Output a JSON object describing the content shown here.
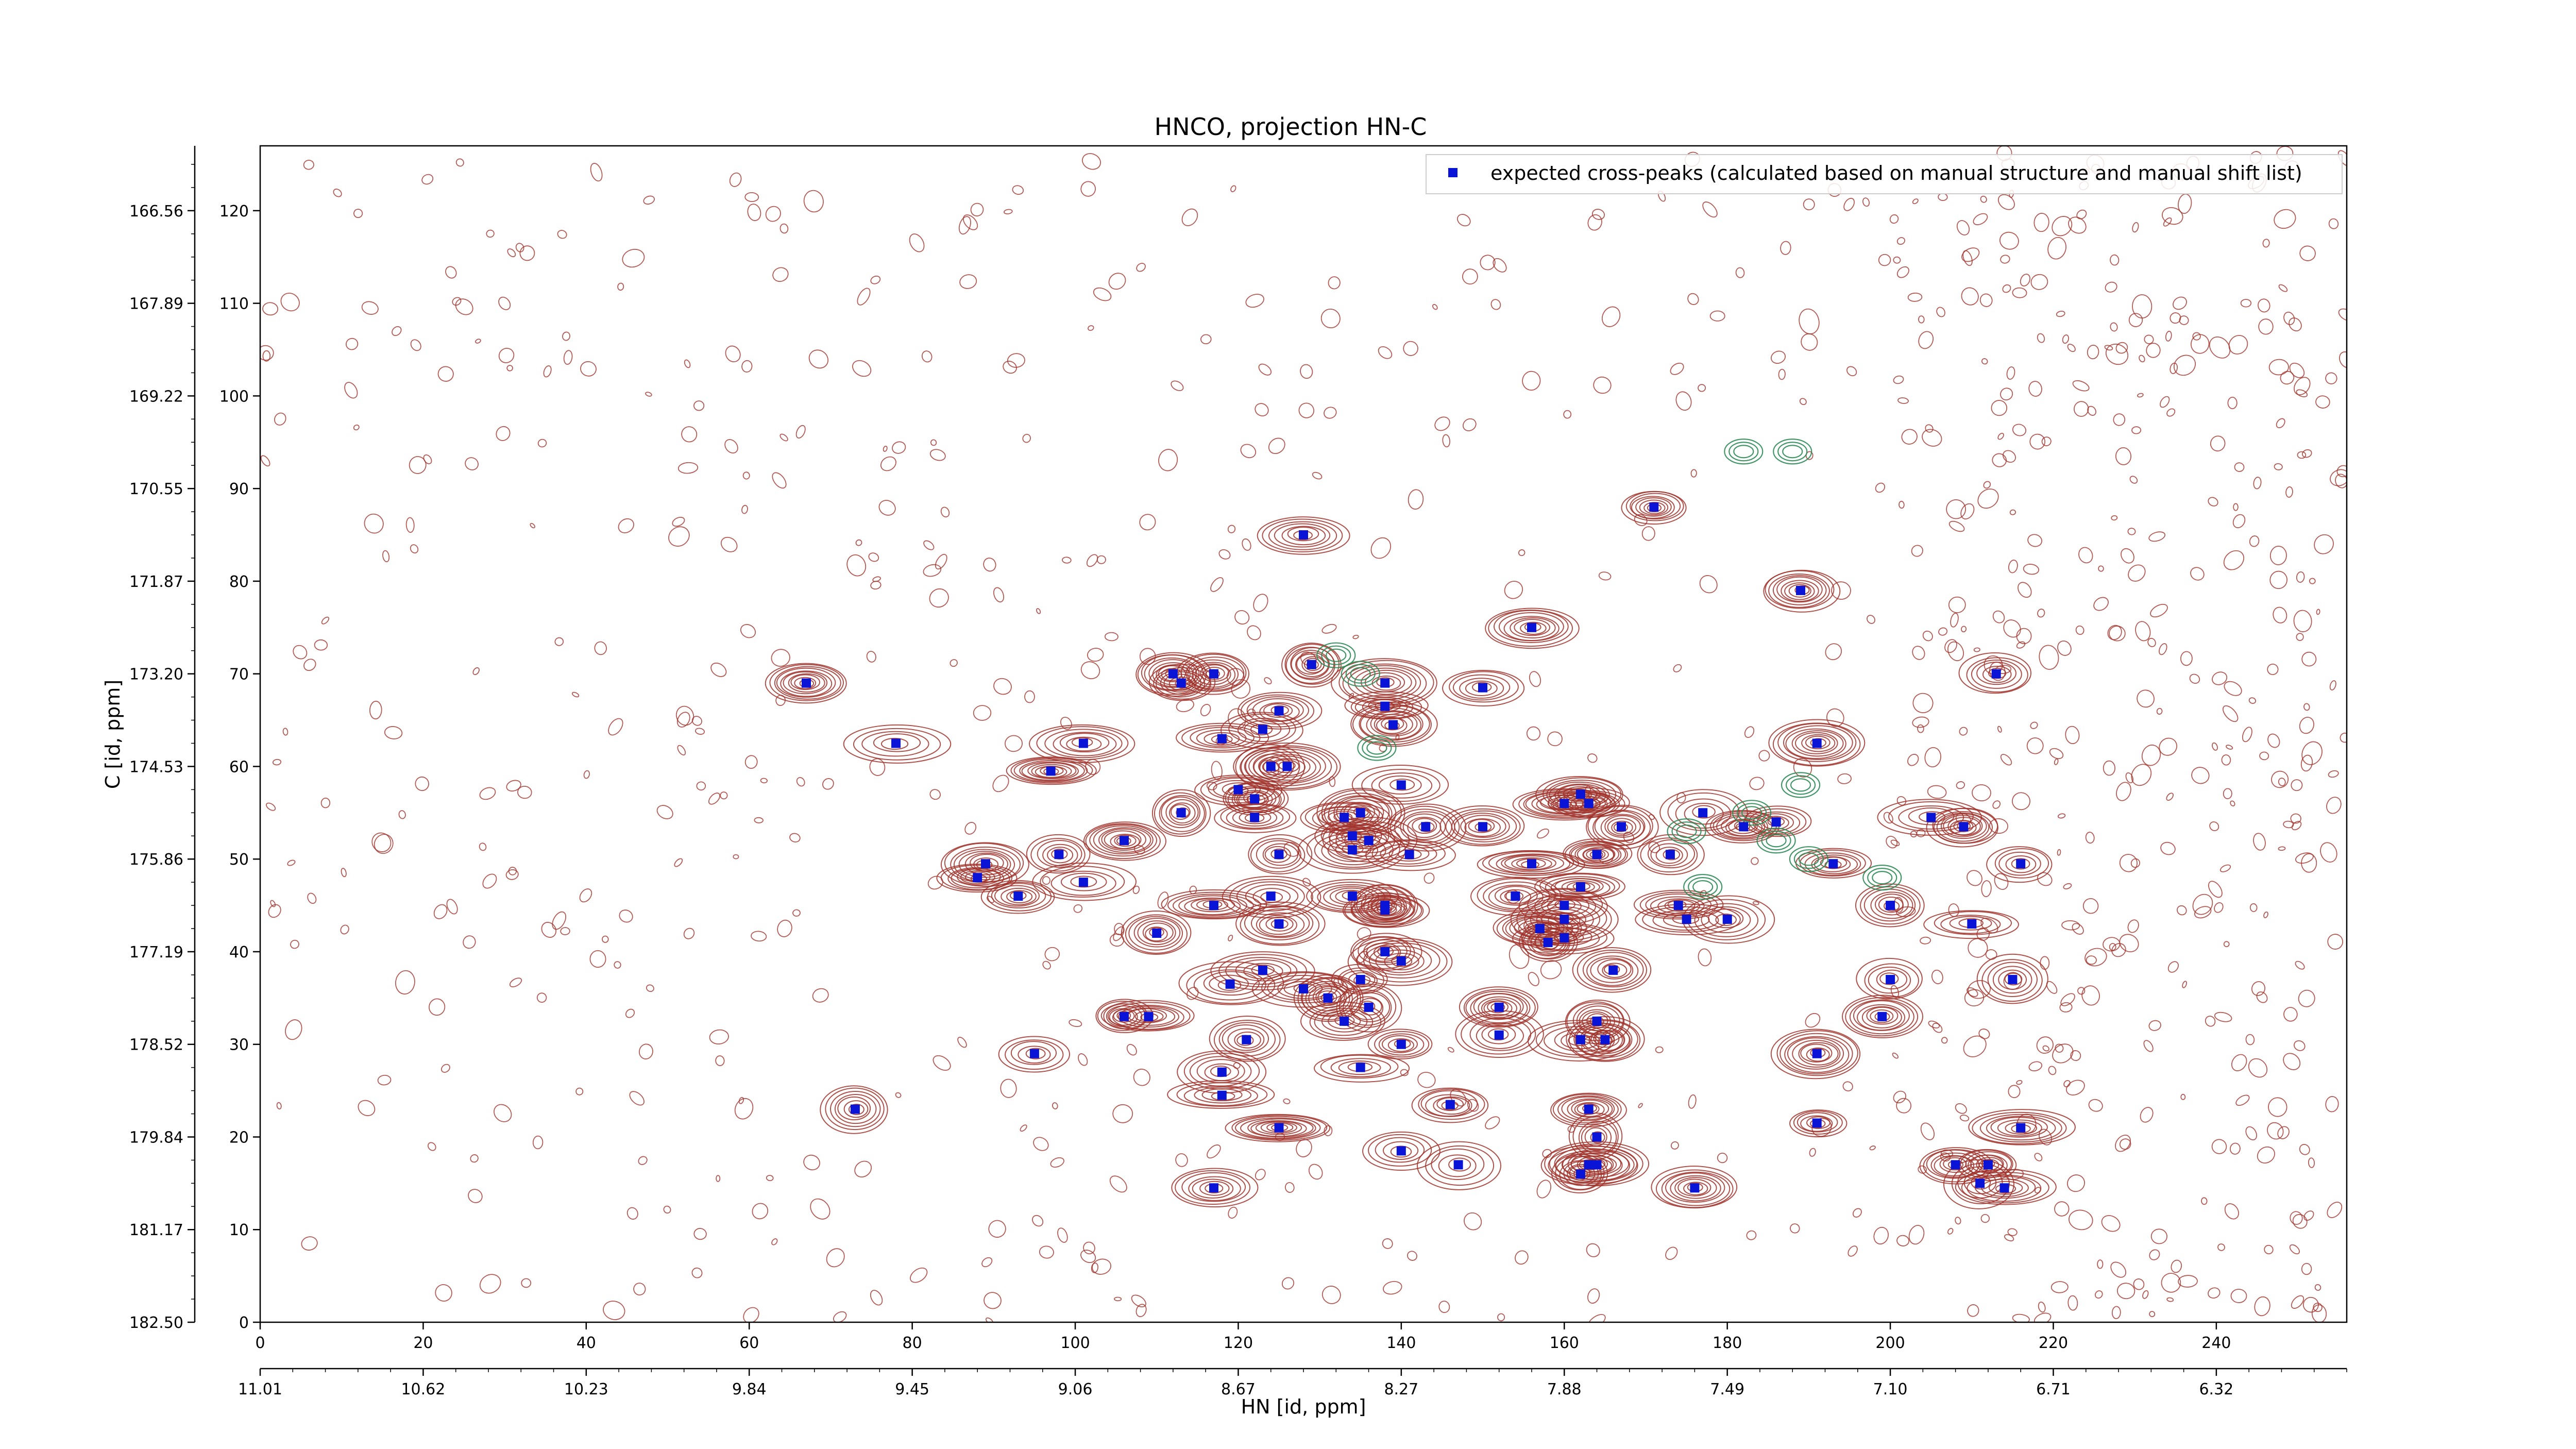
{
  "chart_data": {
    "type": "scatter",
    "title": "HNCO, projection HN-C",
    "xlabel": "HN [id, ppm]",
    "ylabel": "C [id, ppm]",
    "xlim": [
      0,
      256
    ],
    "ylim": [
      0,
      127
    ],
    "x_index_ticks": [
      "0",
      "20",
      "40",
      "60",
      "80",
      "100",
      "120",
      "140",
      "160",
      "180",
      "200",
      "220",
      "240"
    ],
    "x_index_tick_values": [
      0,
      20,
      40,
      60,
      80,
      100,
      120,
      140,
      160,
      180,
      200,
      220,
      240
    ],
    "x_ppm_ticks": [
      "11.01",
      "10.62",
      "10.23",
      "9.84",
      "9.45",
      "9.06",
      "8.67",
      "8.27",
      "7.88",
      "7.49",
      "7.10",
      "6.71",
      "6.32"
    ],
    "y_index_ticks": [
      "0",
      "10",
      "20",
      "30",
      "40",
      "50",
      "60",
      "70",
      "80",
      "90",
      "100",
      "110",
      "120"
    ],
    "y_index_tick_values": [
      0,
      10,
      20,
      30,
      40,
      50,
      60,
      70,
      80,
      90,
      100,
      110,
      120
    ],
    "y_ppm_ticks": [
      "182.50",
      "181.17",
      "179.84",
      "178.52",
      "177.19",
      "175.86",
      "174.53",
      "173.20",
      "171.87",
      "170.55",
      "169.22",
      "167.89",
      "166.56"
    ],
    "legend": {
      "position": "top-right",
      "entries": [
        {
          "label": "expected cross-peaks (calculated based on manual structure and manual shift list)",
          "color": "#0000cc",
          "marker": "square"
        }
      ]
    },
    "colors": {
      "positive_contour": "#a0332c",
      "negative_contour": "#2e8b57",
      "peak_marker": "#0a14d6"
    },
    "series": [
      {
        "name": "expected cross-peaks (calculated based on manual structure and manual shift list)",
        "points": [
          [
            67,
            69
          ],
          [
            78,
            62.5
          ],
          [
            73,
            23
          ],
          [
            89,
            49.5
          ],
          [
            88,
            48
          ],
          [
            93,
            46
          ],
          [
            98,
            50.5
          ],
          [
            95,
            29
          ],
          [
            97,
            59.5
          ],
          [
            101,
            62.5
          ],
          [
            101,
            47.5
          ],
          [
            106,
            52
          ],
          [
            106,
            33
          ],
          [
            109,
            33
          ],
          [
            110,
            42
          ],
          [
            112,
            70
          ],
          [
            113,
            69
          ],
          [
            117,
            70
          ],
          [
            113,
            55
          ],
          [
            118,
            63
          ],
          [
            117,
            45
          ],
          [
            119,
            36.5
          ],
          [
            118,
            27
          ],
          [
            118,
            24.5
          ],
          [
            117,
            14.5
          ],
          [
            121,
            30.5
          ],
          [
            120,
            57.5
          ],
          [
            122,
            56.5
          ],
          [
            122,
            54.5
          ],
          [
            123,
            64
          ],
          [
            124,
            60
          ],
          [
            125,
            66
          ],
          [
            126,
            60
          ],
          [
            125,
            50.5
          ],
          [
            124,
            46
          ],
          [
            125,
            43
          ],
          [
            123,
            38
          ],
          [
            125,
            21
          ],
          [
            128,
            36
          ],
          [
            129,
            71
          ],
          [
            128,
            85
          ],
          [
            131,
            35
          ],
          [
            133,
            32.5
          ],
          [
            133,
            54.5
          ],
          [
            134,
            52.5
          ],
          [
            134,
            51
          ],
          [
            135,
            55
          ],
          [
            134,
            46
          ],
          [
            136,
            52
          ],
          [
            135,
            37
          ],
          [
            136,
            34
          ],
          [
            135,
            27.5
          ],
          [
            138,
            69
          ],
          [
            138,
            66.5
          ],
          [
            139,
            64.5
          ],
          [
            140,
            58
          ],
          [
            141,
            50.5
          ],
          [
            138,
            45
          ],
          [
            138,
            44.5
          ],
          [
            138,
            40
          ],
          [
            140,
            39
          ],
          [
            140,
            30
          ],
          [
            140,
            18.5
          ],
          [
            143,
            53.5
          ],
          [
            146,
            23.5
          ],
          [
            147,
            17
          ],
          [
            150,
            68.5
          ],
          [
            150,
            53.5
          ],
          [
            154,
            46
          ],
          [
            152,
            34
          ],
          [
            152,
            31
          ],
          [
            156,
            75
          ],
          [
            156,
            49.5
          ],
          [
            157,
            42.5
          ],
          [
            158,
            41
          ],
          [
            160,
            41.5
          ],
          [
            160,
            43.5
          ],
          [
            160,
            56
          ],
          [
            160,
            45
          ],
          [
            163,
            56
          ],
          [
            162,
            57
          ],
          [
            162,
            47
          ],
          [
            164,
            50.5
          ],
          [
            164,
            32.5
          ],
          [
            165,
            30.5
          ],
          [
            162,
            30.5
          ],
          [
            164,
            20
          ],
          [
            163,
            23
          ],
          [
            162,
            16
          ],
          [
            163,
            17
          ],
          [
            164,
            17
          ],
          [
            167,
            53.5
          ],
          [
            166,
            38
          ],
          [
            171,
            88
          ],
          [
            173,
            50.5
          ],
          [
            174,
            45
          ],
          [
            175,
            43.5
          ],
          [
            176,
            14.5
          ],
          [
            177,
            55
          ],
          [
            180,
            43.5
          ],
          [
            182,
            53.5
          ],
          [
            186,
            54
          ],
          [
            189,
            79
          ],
          [
            191,
            62.5
          ],
          [
            191,
            29
          ],
          [
            191,
            21.5
          ],
          [
            193,
            49.5
          ],
          [
            200,
            45
          ],
          [
            200,
            37
          ],
          [
            199,
            33
          ],
          [
            205,
            54.5
          ],
          [
            209,
            53.5
          ],
          [
            210,
            43
          ],
          [
            208,
            17
          ],
          [
            211,
            15
          ],
          [
            212,
            17
          ],
          [
            214,
            14.5
          ],
          [
            213,
            70
          ],
          [
            215,
            37
          ],
          [
            216,
            21
          ],
          [
            216,
            49.5
          ]
        ]
      }
    ]
  }
}
